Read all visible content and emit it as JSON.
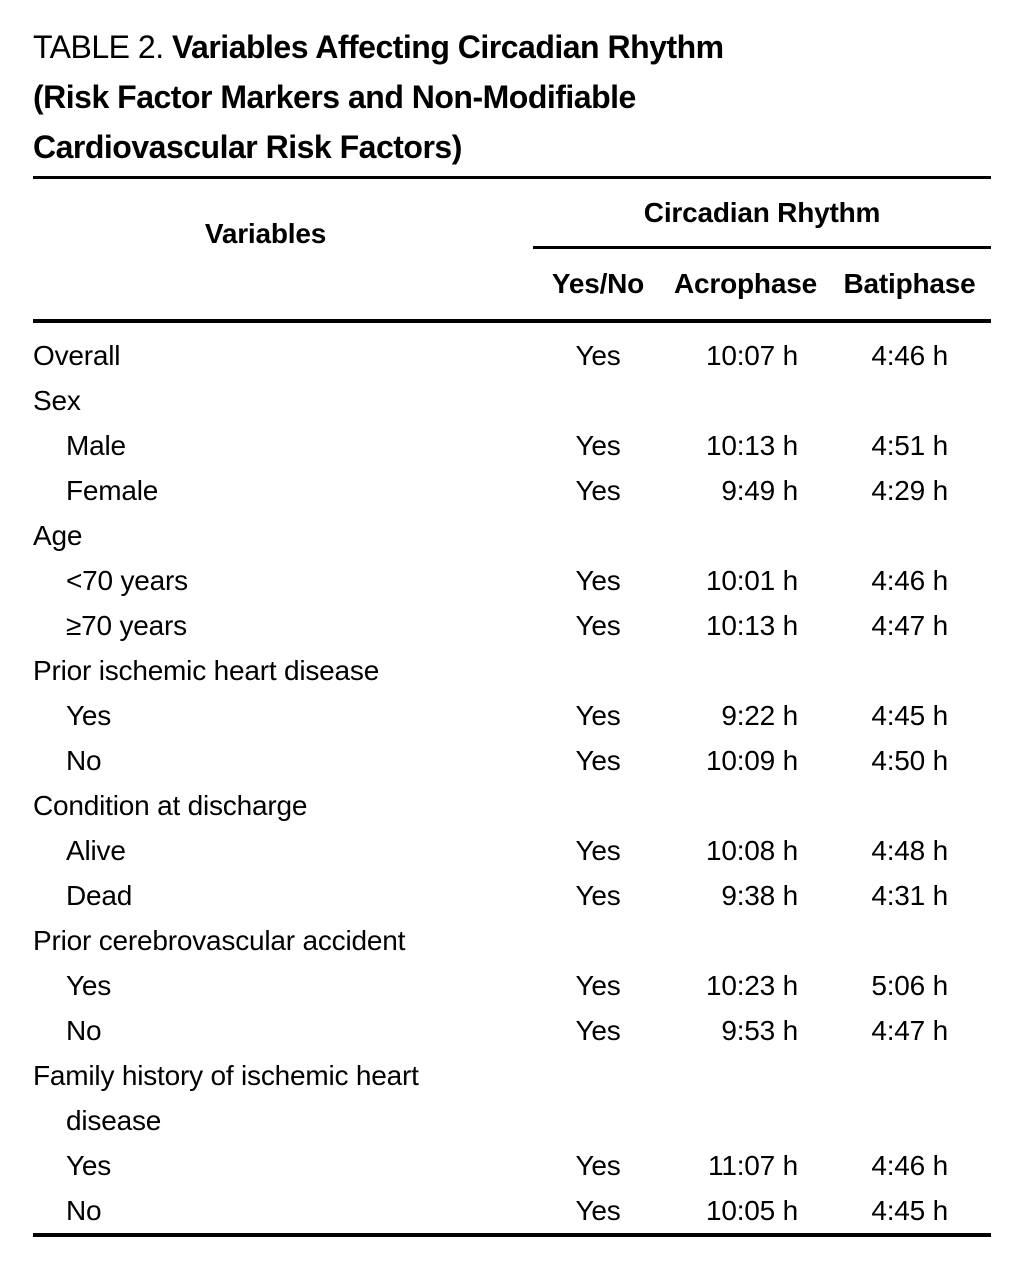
{
  "colors": {
    "background": "#ffffff",
    "text": "#000000",
    "rule": "#000000"
  },
  "title": {
    "prefix": "TABLE 2.",
    "line1": "Variables Affecting Circadian Rhythm",
    "line2": "(Risk Factor Markers and Non-Modifiable",
    "line3": "Cardiovascular Risk Factors)"
  },
  "table": {
    "row_header": "Variables",
    "spanner": "Circadian Rhythm",
    "columns": [
      "Yes/No",
      "Acrophase",
      "Batiphase"
    ],
    "rows": [
      {
        "label": "Overall",
        "indent": 0,
        "yes_no": "Yes",
        "acrophase": "10:07 h",
        "batiphase": "4:46 h"
      },
      {
        "label": "Sex",
        "indent": 0
      },
      {
        "label": "Male",
        "indent": 1,
        "yes_no": "Yes",
        "acrophase": "10:13 h",
        "batiphase": "4:51 h"
      },
      {
        "label": "Female",
        "indent": 1,
        "yes_no": "Yes",
        "acrophase": "9:49 h",
        "batiphase": "4:29 h"
      },
      {
        "label": "Age",
        "indent": 0
      },
      {
        "label": "<70 years",
        "indent": 1,
        "yes_no": "Yes",
        "acrophase": "10:01 h",
        "batiphase": "4:46 h"
      },
      {
        "label": "≥70 years",
        "indent": 1,
        "yes_no": "Yes",
        "acrophase": "10:13 h",
        "batiphase": "4:47 h"
      },
      {
        "label": "Prior ischemic heart disease",
        "indent": 0
      },
      {
        "label": "Yes",
        "indent": 1,
        "yes_no": "Yes",
        "acrophase": "9:22 h",
        "batiphase": "4:45 h"
      },
      {
        "label": "No",
        "indent": 1,
        "yes_no": "Yes",
        "acrophase": "10:09 h",
        "batiphase": "4:50 h"
      },
      {
        "label": "Condition at discharge",
        "indent": 0
      },
      {
        "label": "Alive",
        "indent": 1,
        "yes_no": "Yes",
        "acrophase": "10:08 h",
        "batiphase": "4:48 h"
      },
      {
        "label": "Dead",
        "indent": 1,
        "yes_no": "Yes",
        "acrophase": "9:38 h",
        "batiphase": "4:31 h"
      },
      {
        "label": "Prior cerebrovascular accident",
        "indent": 0
      },
      {
        "label": "Yes",
        "indent": 1,
        "yes_no": "Yes",
        "acrophase": "10:23 h",
        "batiphase": "5:06 h"
      },
      {
        "label": "No",
        "indent": 1,
        "yes_no": "Yes",
        "acrophase": "9:53 h",
        "batiphase": "4:47 h"
      },
      {
        "label": "Family history of ischemic heart",
        "label_line2": "disease",
        "indent": 0
      },
      {
        "label": "Yes",
        "indent": 1,
        "yes_no": "Yes",
        "acrophase": "11:07 h",
        "batiphase": "4:46 h"
      },
      {
        "label": "No",
        "indent": 1,
        "yes_no": "Yes",
        "acrophase": "10:05 h",
        "batiphase": "4:45 h"
      }
    ]
  }
}
